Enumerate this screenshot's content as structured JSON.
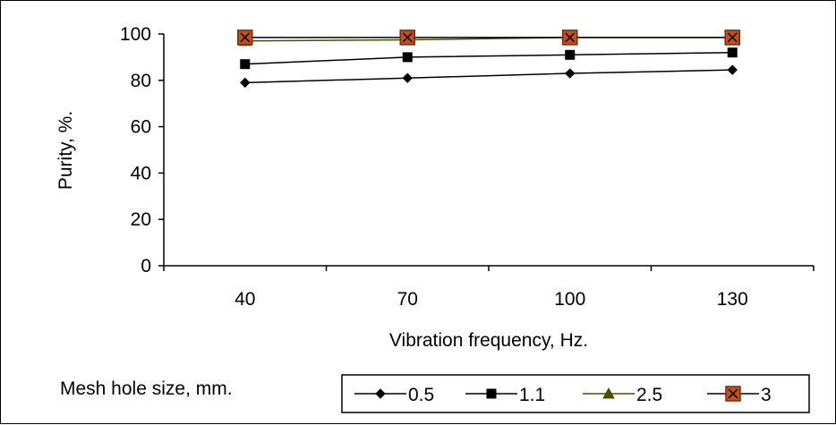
{
  "chart_data": {
    "type": "line",
    "x": [
      "40",
      "70",
      "100",
      "130"
    ],
    "xlabel": "Vibration frequency, Hz.",
    "ylabel": "Purity, %.",
    "ylim": [
      0,
      100
    ],
    "yticks": [
      "0",
      "20",
      "40",
      "60",
      "80",
      "100"
    ],
    "grid": false,
    "legend_title": "Mesh hole size, mm.",
    "legend_position": "bottom",
    "series": [
      {
        "name": "0.5",
        "values": [
          79,
          81,
          83,
          84.5
        ],
        "marker": "diamond",
        "color": "#000000",
        "marker_fill": "#000000"
      },
      {
        "name": "1.1",
        "values": [
          87,
          90,
          91,
          92
        ],
        "marker": "square",
        "color": "#000000",
        "marker_fill": "#000000"
      },
      {
        "name": "2.5",
        "values": [
          97,
          97.5,
          98.5,
          98.5
        ],
        "marker": "triangle",
        "color": "#4d4d00",
        "marker_fill": "#4d4d00"
      },
      {
        "name": "3",
        "values": [
          98.5,
          98.5,
          98.5,
          98.5
        ],
        "marker": "x-square",
        "color": "#000000",
        "marker_fill": "#c0501e"
      }
    ]
  }
}
